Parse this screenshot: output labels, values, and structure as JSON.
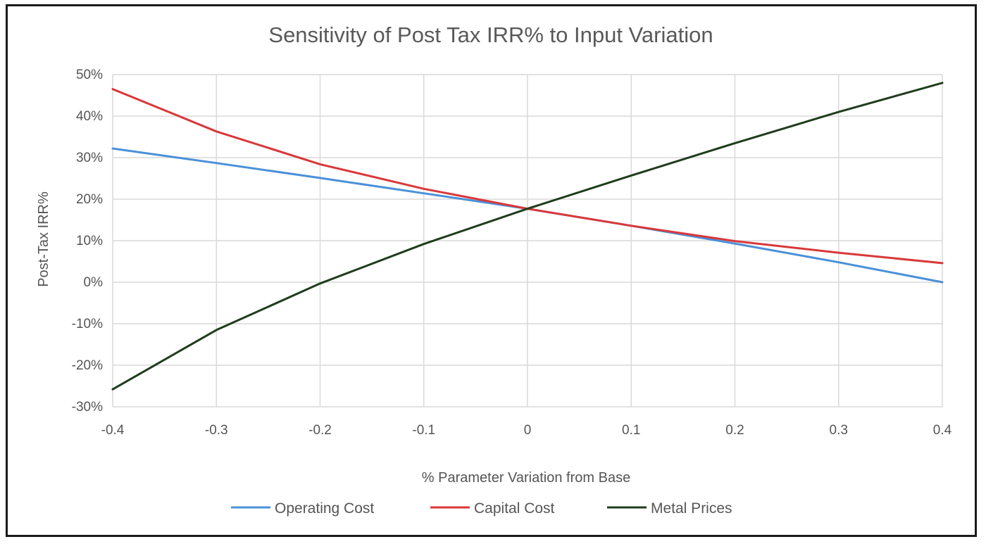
{
  "chart_data": {
    "type": "line",
    "title": "Sensitivity of Post Tax IRR% to Input Variation",
    "xlabel": "% Parameter Variation from Base",
    "ylabel": "Post-Tax IRR%",
    "xlim": [
      -0.4,
      0.4
    ],
    "ylim": [
      -30,
      50
    ],
    "x_ticks": [
      "-0.4",
      "-0.3",
      "-0.2",
      "-0.1",
      "0",
      "0.1",
      "0.2",
      "0.3",
      "0.4"
    ],
    "y_ticks": [
      "50%",
      "40%",
      "30%",
      "20%",
      "10%",
      "0%",
      "-10%",
      "-20%",
      "-30%"
    ],
    "grid": true,
    "legend_position": "bottom",
    "x": [
      -0.4,
      -0.3,
      -0.2,
      -0.1,
      0,
      0.1,
      0.2,
      0.3,
      0.4
    ],
    "series": [
      {
        "name": "Operating Cost",
        "color": "#4a90d9",
        "values": [
          32.2,
          28.7,
          25.1,
          21.4,
          17.7,
          13.6,
          9.3,
          4.8,
          0.0
        ]
      },
      {
        "name": "Capital Cost",
        "color": "#d9383a",
        "values": [
          46.5,
          36.3,
          28.4,
          22.5,
          17.7,
          13.6,
          9.9,
          7.1,
          4.6
        ]
      },
      {
        "name": "Metal Prices",
        "color": "#1f3d1c",
        "values": [
          -25.8,
          -11.5,
          -0.3,
          9.2,
          17.7,
          25.7,
          33.5,
          41.0,
          48.0
        ]
      }
    ]
  }
}
